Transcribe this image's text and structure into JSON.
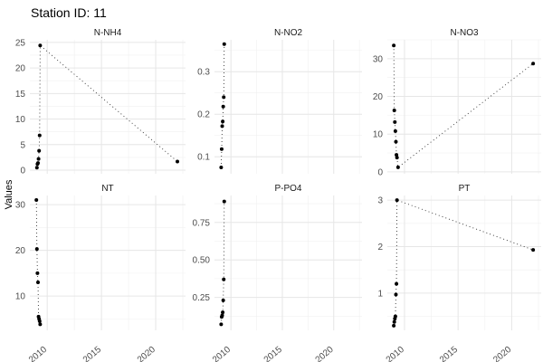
{
  "chart_data": {
    "type": "scatter",
    "title": "Station ID: 11",
    "xlabel": "",
    "ylabel": "Values",
    "grid": true,
    "xlim": [
      2008.4,
      2022.75
    ],
    "xticks": [
      2010,
      2015,
      2020
    ],
    "facets": [
      {
        "name": "N-NH4",
        "ylim": [
          -0.7,
          25.5
        ],
        "yticks": [
          0,
          5,
          10,
          15,
          20,
          25
        ],
        "x": [
          2009.05,
          2009.1,
          2009.15,
          2009.2,
          2009.25,
          2009.3,
          2009.35,
          2022.0
        ],
        "y": [
          0.5,
          1.2,
          1.4,
          2.2,
          3.8,
          6.8,
          24.4,
          1.7
        ]
      },
      {
        "name": "N-NO2",
        "ylim": [
          0.06,
          0.375
        ],
        "yticks": [
          0.1,
          0.2,
          0.3
        ],
        "x": [
          2009.05,
          2009.1,
          2009.15,
          2009.2,
          2009.25,
          2009.3,
          2009.35
        ],
        "y": [
          0.075,
          0.118,
          0.172,
          0.183,
          0.218,
          0.24,
          0.365
        ]
      },
      {
        "name": "N-NO3",
        "ylim": [
          -0.5,
          35
        ],
        "yticks": [
          0,
          10,
          20,
          30
        ],
        "x": [
          2009.0,
          2009.05,
          2009.1,
          2009.15,
          2009.2,
          2009.25,
          2009.3,
          2009.4,
          2022.0
        ],
        "y": [
          33.5,
          16.3,
          13.2,
          10.8,
          8.0,
          4.5,
          3.8,
          1.2,
          28.7
        ]
      },
      {
        "name": "NT",
        "ylim": [
          2.5,
          32
        ],
        "yticks": [
          10,
          20,
          30
        ],
        "x": [
          2009.0,
          2009.05,
          2009.1,
          2009.15,
          2009.2,
          2009.25,
          2009.3,
          2009.35
        ],
        "y": [
          31.0,
          20.3,
          15.0,
          13.0,
          5.5,
          5.0,
          4.5,
          3.8
        ]
      },
      {
        "name": "P-PO4",
        "ylim": [
          0.03,
          0.93
        ],
        "yticks": [
          0.25,
          0.5,
          0.75
        ],
        "x": [
          2009.05,
          2009.1,
          2009.15,
          2009.2,
          2009.25,
          2009.3,
          2009.35
        ],
        "y": [
          0.07,
          0.12,
          0.13,
          0.15,
          0.23,
          0.37,
          0.89
        ]
      },
      {
        "name": "PT",
        "ylim": [
          0.2,
          3.1
        ],
        "yticks": [
          1,
          2,
          3
        ],
        "x": [
          2009.0,
          2009.05,
          2009.1,
          2009.15,
          2009.2,
          2009.25,
          2009.3,
          2022.0
        ],
        "y": [
          0.3,
          0.38,
          0.45,
          0.5,
          0.97,
          1.2,
          3.0,
          1.93
        ]
      }
    ]
  },
  "labels": {
    "title": "Station ID: 11",
    "ylabel": "Values",
    "ytick_format": {
      "N-NH4": 0,
      "N-NO2": 1,
      "N-NO3": 0,
      "NT": 0,
      "P-PO4": 2,
      "PT": 0
    }
  }
}
